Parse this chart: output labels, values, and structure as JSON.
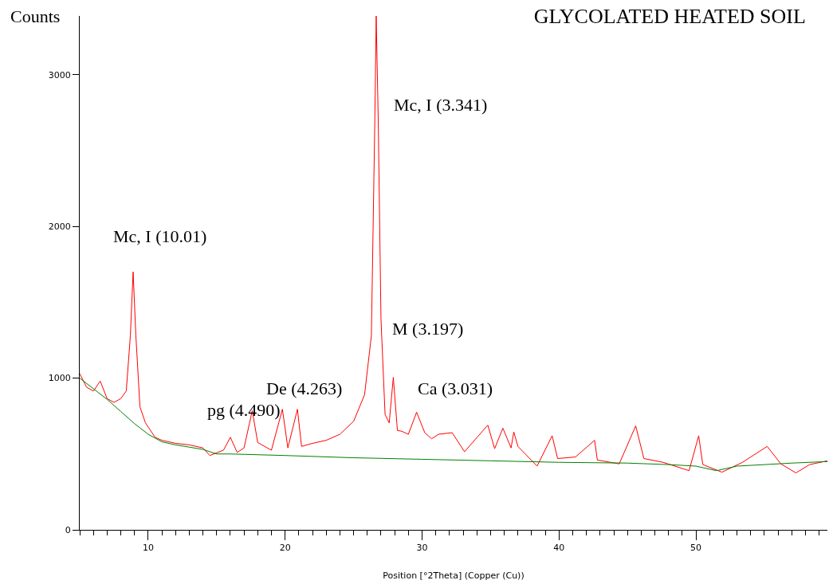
{
  "chart_data": {
    "type": "line",
    "title": "GLYCOLATED HEATED SOIL",
    "xlabel": "Position [°2Theta] (Copper (Cu))",
    "ylabel": "Counts",
    "xlim": [
      5,
      59.6
    ],
    "xticks": [
      10,
      20,
      30,
      40,
      50
    ],
    "ylim": [
      0,
      3387
    ],
    "yticks": [
      0,
      1000,
      2000,
      3000
    ],
    "marker": "none",
    "line_style": "solid",
    "series": [
      {
        "color": "#ff0000",
        "x": [
          5,
          5.5,
          6,
          6.5,
          7,
          7.5,
          8,
          8.4,
          8.7,
          8.9,
          9.1,
          9.4,
          9.8,
          10.5,
          11,
          12,
          13,
          14,
          14.5,
          15.5,
          16,
          16.5,
          17,
          17.6,
          18,
          19,
          19.8,
          20.2,
          20.9,
          21.2,
          22,
          23,
          24,
          25,
          25.8,
          26.3,
          26.55,
          26.65,
          26.8,
          27.0,
          27.3,
          27.6,
          27.9,
          28.2,
          28.5,
          29.0,
          29.6,
          30.2,
          30.7,
          31.2,
          32.2,
          33.1,
          34.8,
          35.3,
          35.9,
          36.5,
          36.7,
          37.0,
          38.4,
          39.5,
          39.9,
          41.2,
          42.6,
          42.8,
          44.4,
          45.6,
          46.2,
          47.6,
          49.5,
          50.2,
          50.5,
          51.9,
          53.4,
          55.2,
          56.2,
          57.3,
          58.3,
          59.6
        ],
        "values": [
          1030,
          940,
          915,
          980,
          865,
          840,
          865,
          915,
          1280,
          1700,
          1280,
          810,
          705,
          610,
          590,
          570,
          560,
          540,
          490,
          525,
          610,
          510,
          540,
          785,
          575,
          525,
          795,
          540,
          795,
          550,
          570,
          590,
          630,
          715,
          890,
          1280,
          2700,
          3387,
          2700,
          1390,
          760,
          705,
          1005,
          655,
          650,
          630,
          775,
          640,
          600,
          630,
          640,
          515,
          690,
          535,
          670,
          540,
          645,
          550,
          420,
          620,
          470,
          480,
          590,
          460,
          435,
          685,
          470,
          445,
          390,
          620,
          430,
          380,
          445,
          550,
          435,
          375,
          430,
          455
        ]
      },
      {
        "color": "#008000",
        "x": [
          5,
          6,
          7,
          8,
          9,
          10,
          11,
          12,
          13,
          14,
          15,
          16,
          20,
          25,
          30,
          35,
          40,
          45,
          48,
          50,
          51.5,
          53,
          55,
          57,
          59.6
        ],
        "values": [
          1000,
          930,
          860,
          780,
          700,
          630,
          580,
          560,
          545,
          530,
          500,
          500,
          490,
          475,
          465,
          455,
          445,
          440,
          430,
          420,
          390,
          420,
          430,
          440,
          450
        ]
      }
    ],
    "annotations": [
      {
        "text": "Mc, I (10.01)",
        "x": 8.9,
        "y": 1700
      },
      {
        "text": "Mc, I (3.341)",
        "x": 26.8,
        "y": 2700
      },
      {
        "text": "M (3.197)",
        "x": 27.9,
        "y": 1005
      },
      {
        "text": "Ca (3.031)",
        "x": 29.6,
        "y": 775
      },
      {
        "text": "De (4.263)",
        "x": 20.9,
        "y": 795
      },
      {
        "text": "pg (4.490)",
        "x": 19.8,
        "y": 795
      }
    ]
  }
}
